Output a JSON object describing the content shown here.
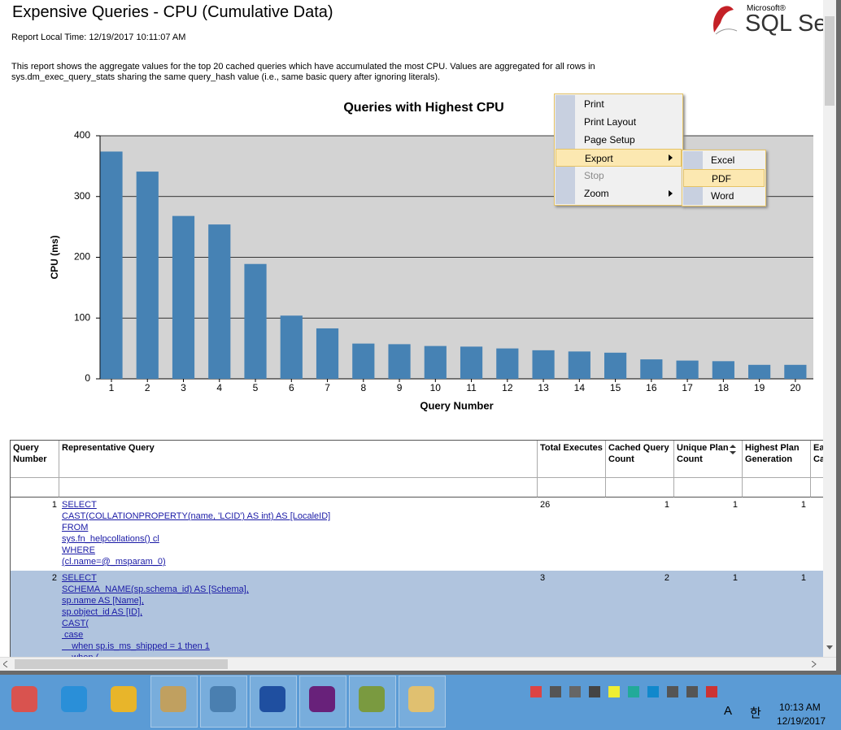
{
  "header": {
    "title": "Expensive Queries - CPU (Cumulative Data)",
    "report_time": "Report Local Time: 12/19/2017 10:11:07 AM",
    "description": [
      "This report shows the aggregate values for the top 20 cached queries which have accumulated the most CPU. Values are aggregated for all rows in",
      "sys.dm_exec_query_stats sharing the same query_hash value (i.e., same basic query after ignoring literals)."
    ],
    "logo": {
      "brand": "Microsoft®",
      "product": "SQL Serv"
    }
  },
  "chart_data": {
    "type": "bar",
    "title": "Queries with Highest CPU",
    "x_label": "Query Number",
    "y_label": "CPU (ms)",
    "categories": [
      "1",
      "2",
      "3",
      "4",
      "5",
      "6",
      "7",
      "8",
      "9",
      "10",
      "11",
      "12",
      "13",
      "14",
      "15",
      "16",
      "17",
      "18",
      "19",
      "20"
    ],
    "values": [
      374,
      341,
      268,
      254,
      189,
      104,
      83,
      58,
      57,
      54,
      53,
      50,
      47,
      45,
      43,
      32,
      30,
      29,
      23,
      23
    ],
    "color": "#4682b4",
    "ylim": [
      0,
      400
    ],
    "yticks": [
      0,
      100,
      200,
      300,
      400
    ],
    "grid": true
  },
  "table": {
    "columns": [
      "Query Number",
      "Representative Query",
      "Total Executes",
      "Cached Query Count",
      "Unique Plan Count",
      "Highest Plan Generation",
      "Ea Ca"
    ],
    "rows": [
      {
        "number": 1,
        "query": [
          "SELECT",
          "CAST(COLLATIONPROPERTY(name, 'LCID') AS int) AS [LocaleID]",
          "FROM",
          "sys.fn_helpcollations() cl",
          "WHERE",
          "(cl.name=@_msparam_0)"
        ],
        "cells": [
          26,
          1,
          1,
          1
        ]
      },
      {
        "number": 2,
        "query": [
          "SELECT",
          "SCHEMA_NAME(sp.schema_id) AS [Schema],",
          "sp.name AS [Name],",
          "sp.object_id AS [ID],",
          "CAST(",
          " case",
          "    when sp.is_ms_shipped = 1 then 1",
          "    when ("
        ],
        "cells": [
          3,
          2,
          1,
          1
        ]
      }
    ]
  },
  "context_menu": {
    "items": [
      "Print",
      "Print Layout",
      "Page Setup",
      "Export",
      "Stop",
      "Zoom"
    ],
    "submenu": [
      "Excel",
      "PDF",
      "Word"
    ]
  },
  "taskbar": {
    "tray_letter": "A",
    "ime": "한",
    "time": "10:13 AM",
    "date": "12/19/2017"
  }
}
